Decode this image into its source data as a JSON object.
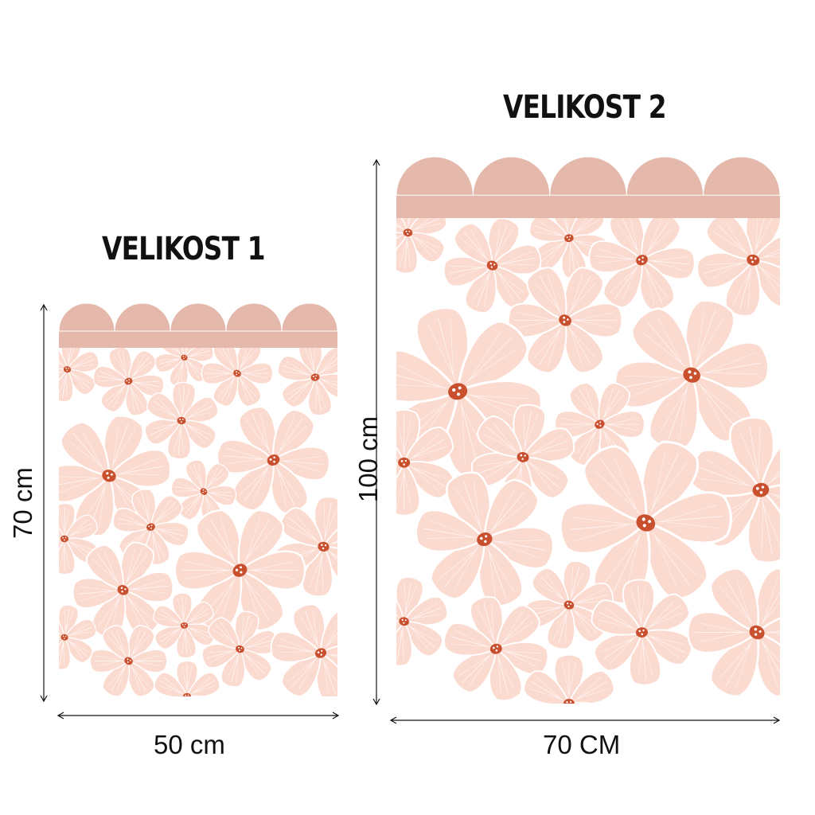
{
  "size_1": {
    "title": "VELIKOST 1",
    "width_label": "50 cm",
    "height_label": "70 cm"
  },
  "size_2": {
    "title": "VELIKOST 2",
    "width_label": "70 CM",
    "height_label": "100 cm"
  },
  "colors": {
    "scallop": "#e4b9ab",
    "petal": "#fbdad0",
    "petal_line": "#ffffff",
    "center": "#c9502e",
    "text": "#111111"
  }
}
